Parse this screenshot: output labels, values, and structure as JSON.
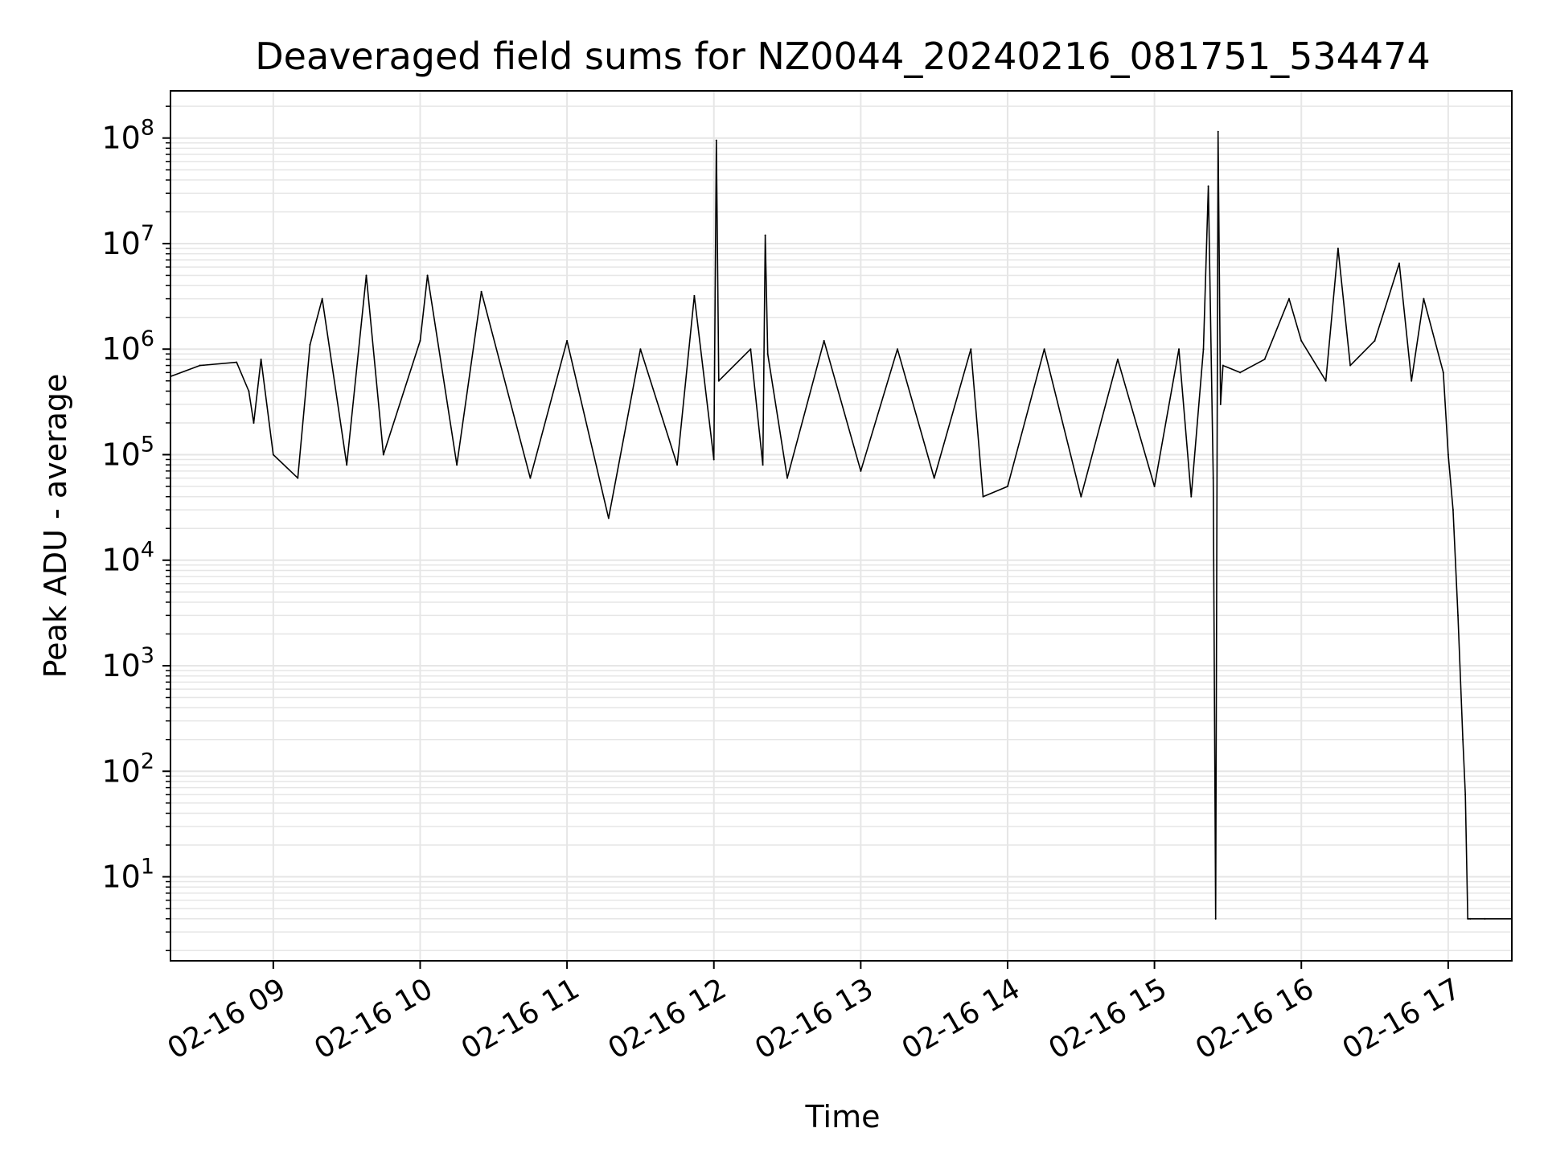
{
  "chart_data": {
    "type": "line",
    "title": "Deaveraged field sums for NZ0044_20240216_081751_534474",
    "xlabel": "Time",
    "ylabel": "Peak ADU - average",
    "x_scale": "time",
    "y_scale": "log",
    "xlim": [
      "2024-02-16 08:18",
      "2024-02-16 17:26"
    ],
    "ylim": [
      1.6,
      280000000
    ],
    "grid": true,
    "legend": "none",
    "line_color": "#000000",
    "grid_color": "#e6e6e6",
    "x_ticks": [
      {
        "value": "2024-02-16 09:00",
        "label": "02-16 09"
      },
      {
        "value": "2024-02-16 10:00",
        "label": "02-16 10"
      },
      {
        "value": "2024-02-16 11:00",
        "label": "02-16 11"
      },
      {
        "value": "2024-02-16 12:00",
        "label": "02-16 12"
      },
      {
        "value": "2024-02-16 13:00",
        "label": "02-16 13"
      },
      {
        "value": "2024-02-16 14:00",
        "label": "02-16 14"
      },
      {
        "value": "2024-02-16 15:00",
        "label": "02-16 15"
      },
      {
        "value": "2024-02-16 16:00",
        "label": "02-16 16"
      },
      {
        "value": "2024-02-16 17:00",
        "label": "02-16 17"
      }
    ],
    "y_ticks": [
      {
        "value": 10,
        "base": "10",
        "exp": "1"
      },
      {
        "value": 100,
        "base": "10",
        "exp": "2"
      },
      {
        "value": 1000,
        "base": "10",
        "exp": "3"
      },
      {
        "value": 10000,
        "base": "10",
        "exp": "4"
      },
      {
        "value": 100000,
        "base": "10",
        "exp": "5"
      },
      {
        "value": 1000000,
        "base": "10",
        "exp": "6"
      },
      {
        "value": 10000000,
        "base": "10",
        "exp": "7"
      },
      {
        "value": 100000000,
        "base": "10",
        "exp": "8"
      }
    ],
    "series": [
      {
        "x": [
          "2024-02-16 08:18",
          "2024-02-16 08:30",
          "2024-02-16 08:45",
          "2024-02-16 08:50",
          "2024-02-16 08:52",
          "2024-02-16 08:55",
          "2024-02-16 09:00",
          "2024-02-16 09:10",
          "2024-02-16 09:15",
          "2024-02-16 09:20",
          "2024-02-16 09:30",
          "2024-02-16 09:38",
          "2024-02-16 09:45",
          "2024-02-16 10:00",
          "2024-02-16 10:03",
          "2024-02-16 10:15",
          "2024-02-16 10:25",
          "2024-02-16 10:45",
          "2024-02-16 11:00",
          "2024-02-16 11:17",
          "2024-02-16 11:30",
          "2024-02-16 11:45",
          "2024-02-16 11:52",
          "2024-02-16 12:00",
          "2024-02-16 12:01",
          "2024-02-16 12:02",
          "2024-02-16 12:15",
          "2024-02-16 12:20",
          "2024-02-16 12:21",
          "2024-02-16 12:22",
          "2024-02-16 12:30",
          "2024-02-16 12:45",
          "2024-02-16 13:00",
          "2024-02-16 13:15",
          "2024-02-16 13:30",
          "2024-02-16 13:45",
          "2024-02-16 13:50",
          "2024-02-16 14:00",
          "2024-02-16 14:15",
          "2024-02-16 14:30",
          "2024-02-16 14:45",
          "2024-02-16 15:00",
          "2024-02-16 15:10",
          "2024-02-16 15:15",
          "2024-02-16 15:20",
          "2024-02-16 15:22",
          "2024-02-16 15:24",
          "2024-02-16 15:25",
          "2024-02-16 15:26",
          "2024-02-16 15:27",
          "2024-02-16 15:28",
          "2024-02-16 15:35",
          "2024-02-16 15:45",
          "2024-02-16 15:55",
          "2024-02-16 16:00",
          "2024-02-16 16:10",
          "2024-02-16 16:15",
          "2024-02-16 16:20",
          "2024-02-16 16:30",
          "2024-02-16 16:40",
          "2024-02-16 16:45",
          "2024-02-16 16:50",
          "2024-02-16 16:58",
          "2024-02-16 17:00",
          "2024-02-16 17:02",
          "2024-02-16 17:04",
          "2024-02-16 17:06",
          "2024-02-16 17:07",
          "2024-02-16 17:08",
          "2024-02-16 17:09",
          "2024-02-16 17:15",
          "2024-02-16 17:26"
        ],
        "y": [
          550000,
          700000,
          750000,
          400000,
          200000,
          800000,
          100000,
          60000,
          1100000,
          3000000,
          80000,
          5000000,
          100000,
          1200000,
          5000000,
          80000,
          3500000,
          60000,
          1200000,
          25000,
          1000000,
          80000,
          3200000,
          90000,
          95000000,
          500000,
          1000000,
          80000,
          12000000,
          900000,
          60000,
          1200000,
          70000,
          1000000,
          60000,
          1000000,
          40000,
          50000,
          1000000,
          40000,
          800000,
          50000,
          1000000,
          40000,
          1000000,
          35000000,
          60000,
          4,
          115000000,
          300000,
          700000,
          600000,
          800000,
          3000000,
          1200000,
          500000,
          9000000,
          700000,
          1200000,
          6500000,
          500000,
          3000000,
          600000,
          100000,
          30000,
          3000,
          200,
          60,
          4,
          4,
          4,
          4
        ]
      }
    ]
  }
}
